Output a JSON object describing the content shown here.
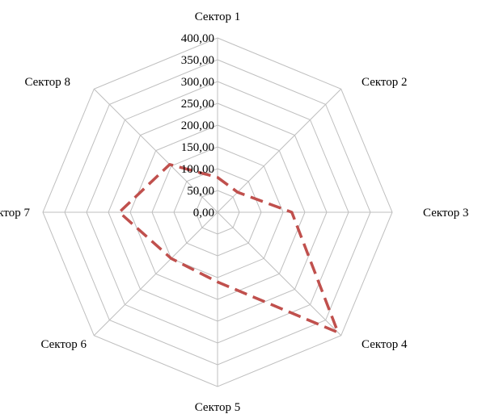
{
  "chart_data": {
    "type": "radar",
    "categories": [
      "Сектор 1",
      "Сектор 2",
      "Сектор 3",
      "Сектор 4",
      "Сектор 5",
      "Сектор 6",
      "Сектор 7",
      "Сектор 8"
    ],
    "ticks": [
      "0,00",
      "50,00",
      "100,00",
      "150,00",
      "200,00",
      "250,00",
      "300,00",
      "350,00",
      "400,00"
    ],
    "rlim": [
      0,
      400
    ],
    "grid": true,
    "series": [
      {
        "values": [
          80,
          65,
          170,
          390,
          160,
          150,
          225,
          155
        ],
        "color": "#c0504d"
      }
    ]
  }
}
